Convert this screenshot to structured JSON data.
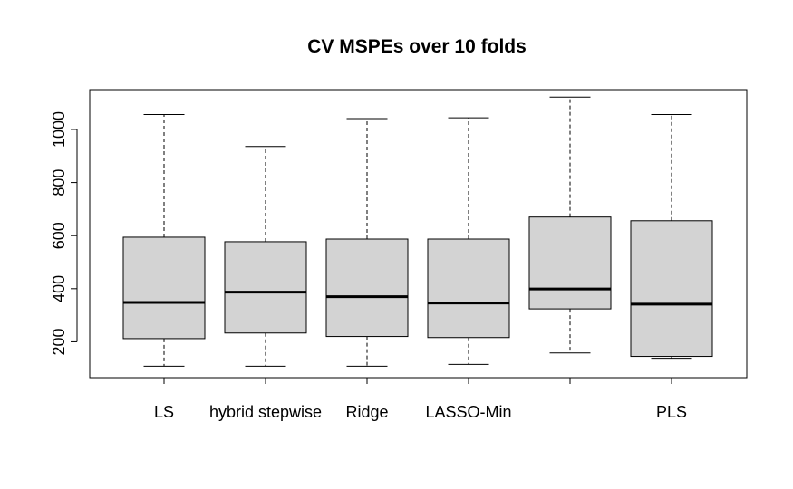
{
  "chart_data": {
    "type": "boxplot",
    "title": "CV MSPEs over 10 folds",
    "xlabel": "",
    "ylabel": "",
    "ylim": [
      65,
      1150
    ],
    "yticks": [
      200,
      400,
      600,
      800,
      1000
    ],
    "box_fill": "#d3d3d3",
    "categories": [
      "LS",
      "hybrid stepwise",
      "Ridge",
      "LASSO-Min",
      "",
      "PLS"
    ],
    "boxes": [
      {
        "whisker_low": 108,
        "q1": 212,
        "median": 348,
        "q3": 594,
        "whisker_high": 1056
      },
      {
        "whisker_low": 108,
        "q1": 233,
        "median": 387,
        "q3": 577,
        "whisker_high": 936
      },
      {
        "whisker_low": 108,
        "q1": 220,
        "median": 370,
        "q3": 587,
        "whisker_high": 1041
      },
      {
        "whisker_low": 115,
        "q1": 216,
        "median": 346,
        "q3": 587,
        "whisker_high": 1044
      },
      {
        "whisker_low": 158,
        "q1": 324,
        "median": 399,
        "q3": 670,
        "whisker_high": 1122
      },
      {
        "whisker_low": 138,
        "q1": 145,
        "median": 342,
        "q3": 656,
        "whisker_high": 1056
      }
    ]
  }
}
